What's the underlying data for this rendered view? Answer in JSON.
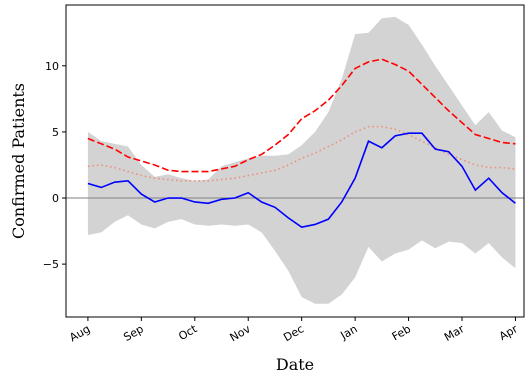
{
  "chart_data": {
    "type": "line",
    "x_label": "Date",
    "y_label": "Confirmed Patients",
    "x": [
      0,
      0.25,
      0.5,
      0.75,
      1,
      1.25,
      1.5,
      1.75,
      2,
      2.25,
      2.5,
      2.75,
      3,
      3.25,
      3.5,
      3.75,
      4,
      4.25,
      4.5,
      4.75,
      5,
      5.25,
      5.5,
      5.75,
      6,
      6.25,
      6.5,
      6.75,
      7,
      7.25,
      7.5,
      7.75,
      8
    ],
    "band": {
      "color": "#d3d3d3",
      "upper": [
        5.0,
        4.3,
        4.1,
        3.9,
        2.5,
        1.6,
        1.8,
        1.5,
        1.3,
        1.4,
        2.4,
        2.7,
        3.0,
        3.2,
        3.2,
        3.3,
        4.0,
        5.0,
        6.5,
        9.0,
        12.4,
        12.5,
        13.6,
        13.7,
        13.1,
        11.6,
        10.0,
        8.5,
        7.0,
        5.5,
        6.5,
        5.1,
        4.6
      ],
      "lower": [
        -2.8,
        -2.6,
        -1.8,
        -1.3,
        -2.0,
        -2.3,
        -1.8,
        -1.6,
        -2.0,
        -2.1,
        -2.0,
        -2.1,
        -2.0,
        -2.6,
        -4.0,
        -5.5,
        -7.5,
        -8.0,
        -8.0,
        -7.3,
        -6.0,
        -3.7,
        -4.8,
        -4.2,
        -3.9,
        -3.2,
        -3.8,
        -3.3,
        -3.4,
        -4.2,
        -3.4,
        -4.5,
        -5.3
      ]
    },
    "series": [
      {
        "color": "#ff0000",
        "dash": "dashed",
        "values": [
          4.5,
          4.1,
          3.7,
          3.1,
          2.8,
          2.5,
          2.1,
          2.0,
          2.0,
          2.0,
          2.2,
          2.4,
          2.9,
          3.3,
          4.0,
          4.8,
          6.0,
          6.6,
          7.4,
          8.5,
          9.8,
          10.3,
          10.5,
          10.1,
          9.6,
          8.6,
          7.6,
          6.6,
          5.7,
          4.8,
          4.5,
          4.2,
          4.1
        ]
      },
      {
        "color": "#f08c78",
        "dash": "dotted",
        "values": [
          2.4,
          2.5,
          2.3,
          2.0,
          1.7,
          1.5,
          1.4,
          1.3,
          1.3,
          1.3,
          1.4,
          1.5,
          1.7,
          1.9,
          2.1,
          2.5,
          3.0,
          3.4,
          3.9,
          4.4,
          5.0,
          5.4,
          5.4,
          5.2,
          4.8,
          4.3,
          3.8,
          3.3,
          2.9,
          2.5,
          2.3,
          2.3,
          2.2
        ]
      },
      {
        "color": "#0000ff",
        "dash": "solid",
        "values": [
          1.1,
          0.8,
          1.2,
          1.3,
          0.3,
          -0.3,
          0.0,
          0.0,
          -0.3,
          -0.4,
          -0.1,
          0.0,
          0.4,
          -0.3,
          -0.7,
          -1.5,
          -2.2,
          -2.0,
          -1.6,
          -0.3,
          1.5,
          4.3,
          3.8,
          4.7,
          4.9,
          4.9,
          3.7,
          3.5,
          2.4,
          0.6,
          1.5,
          0.4,
          -0.4
        ]
      }
    ],
    "hline": 0,
    "xlim": [
      -0.41,
      8.16
    ],
    "ylim": [
      -9.0,
      14.6
    ],
    "xticks": [
      {
        "value": 0,
        "label": "Aug"
      },
      {
        "value": 1,
        "label": "Sep"
      },
      {
        "value": 2,
        "label": "Oct"
      },
      {
        "value": 3,
        "label": "Nov"
      },
      {
        "value": 4,
        "label": "Dec"
      },
      {
        "value": 5,
        "label": "Jan"
      },
      {
        "value": 6,
        "label": "Feb"
      },
      {
        "value": 7,
        "label": "Mar"
      },
      {
        "value": 8,
        "label": "Apr"
      }
    ],
    "yticks": [
      {
        "value": -5,
        "label": "−5"
      },
      0,
      5,
      10
    ]
  }
}
